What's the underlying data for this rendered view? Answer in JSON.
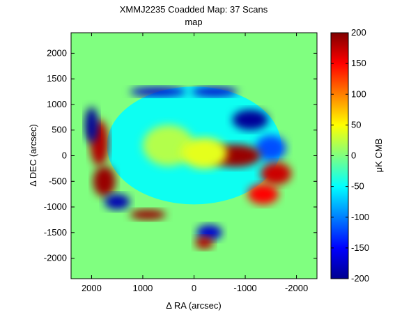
{
  "chart_data": {
    "type": "heatmap",
    "title": "XMMJ2235 Coadded Map: 37 Scans",
    "subtitle": "map",
    "xlabel": "Δ RA (arcsec)",
    "ylabel": "Δ DEC (arcsec)",
    "colorbar_label": "μK CMB",
    "xlim": [
      2400,
      -2400
    ],
    "ylim": [
      -2400,
      2400
    ],
    "x_ticks": [
      2000,
      1000,
      0,
      -1000,
      -2000
    ],
    "x_tick_labels": [
      "2000",
      "1000",
      "0",
      "-1000",
      "-2000"
    ],
    "y_ticks": [
      2000,
      1500,
      1000,
      500,
      0,
      -500,
      -1000,
      -1500,
      -2000
    ],
    "y_tick_labels": [
      "2000",
      "1500",
      "1000",
      "500",
      "0",
      "-500",
      "-1000",
      "-1500",
      "-2000"
    ],
    "clim": [
      -200,
      200
    ],
    "colorbar_ticks": [
      200,
      150,
      100,
      50,
      0,
      -50,
      -100,
      -150,
      -200
    ],
    "colorbar_tick_labels": [
      "200",
      "150",
      "100",
      "50",
      "0",
      "-50",
      "-100",
      "-150",
      "-200"
    ],
    "colormap": "jet",
    "background_value": 0,
    "interior_value": -45,
    "features": [
      {
        "ra": 0,
        "dec": 200,
        "rx": 1700,
        "ry": 1150,
        "value": -45
      },
      {
        "ra": 1850,
        "dec": 250,
        "rx": 180,
        "ry": 450,
        "value": 180
      },
      {
        "ra": 1750,
        "dec": -500,
        "rx": 220,
        "ry": 300,
        "value": 190
      },
      {
        "ra": 2000,
        "dec": 600,
        "rx": 130,
        "ry": 350,
        "value": -190
      },
      {
        "ra": 1500,
        "dec": -900,
        "rx": 250,
        "ry": 150,
        "value": -180
      },
      {
        "ra": 900,
        "dec": -1150,
        "rx": 350,
        "ry": 100,
        "value": 190
      },
      {
        "ra": 700,
        "dec": 1250,
        "rx": 550,
        "ry": 90,
        "value": -170
      },
      {
        "ra": -400,
        "dec": 1250,
        "rx": 450,
        "ry": 90,
        "value": -170
      },
      {
        "ra": -1100,
        "dec": 700,
        "rx": 350,
        "ry": 200,
        "value": -190
      },
      {
        "ra": -1500,
        "dec": 150,
        "rx": 300,
        "ry": 250,
        "value": -120
      },
      {
        "ra": -800,
        "dec": 0,
        "rx": 500,
        "ry": 220,
        "value": 190
      },
      {
        "ra": -1600,
        "dec": -350,
        "rx": 300,
        "ry": 220,
        "value": 170
      },
      {
        "ra": -1350,
        "dec": -750,
        "rx": 300,
        "ry": 200,
        "value": 150
      },
      {
        "ra": -300,
        "dec": -1500,
        "rx": 250,
        "ry": 150,
        "value": -170
      },
      {
        "ra": -200,
        "dec": -1700,
        "rx": 180,
        "ry": 120,
        "value": 180
      },
      {
        "ra": 500,
        "dec": 200,
        "rx": 500,
        "ry": 400,
        "value": 20
      },
      {
        "ra": -200,
        "dec": 50,
        "rx": 450,
        "ry": 300,
        "value": 40
      }
    ]
  }
}
